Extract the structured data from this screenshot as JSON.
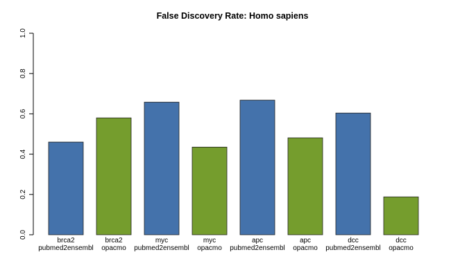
{
  "chart_data": {
    "type": "bar",
    "title": "False Discovery Rate: Homo sapiens",
    "xlabel": "",
    "ylabel": "",
    "ylim": [
      0,
      1
    ],
    "yticks": [
      "0.0",
      "0.2",
      "0.4",
      "0.6",
      "0.8",
      "1.0"
    ],
    "grid": false,
    "categories": [
      [
        "brca2",
        "pubmed2ensembl"
      ],
      [
        "brca2",
        "opacmo"
      ],
      [
        "myc",
        "pubmed2ensembl"
      ],
      [
        "myc",
        "opacmo"
      ],
      [
        "apc",
        "pubmed2ensembl"
      ],
      [
        "apc",
        "opacmo"
      ],
      [
        "dcc",
        "pubmed2ensembl"
      ],
      [
        "dcc",
        "opacmo"
      ]
    ],
    "values": [
      0.46,
      0.58,
      0.658,
      0.435,
      0.668,
      0.481,
      0.604,
      0.188
    ],
    "colors": [
      "#4472ab",
      "#759d2d",
      "#4472ab",
      "#759d2d",
      "#4472ab",
      "#759d2d",
      "#4472ab",
      "#759d2d"
    ]
  }
}
